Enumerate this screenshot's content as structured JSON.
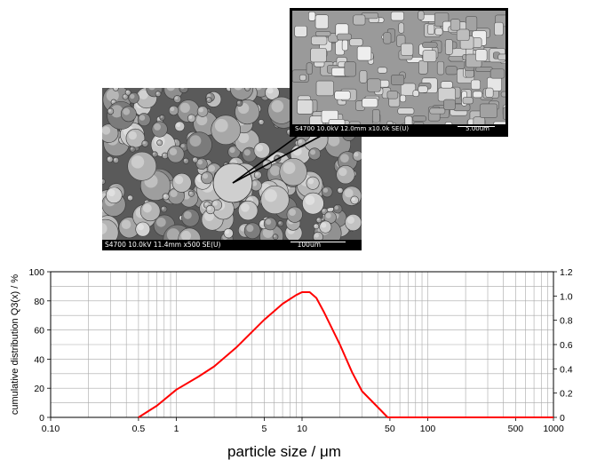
{
  "images": {
    "main": {
      "caption_left": "S4700 10.0kV 11.4mm x500 SE(U)",
      "caption_right": "100um"
    },
    "inset": {
      "caption_left": "S4700 10.0kV 12.0mm x10.0k SE(U)",
      "caption_right": "5.00um"
    }
  },
  "chart_data": {
    "type": "line",
    "xlabel": "particle size / μm",
    "ylabel": "cumulative distribution Q3(x) / %",
    "x_scale": "log",
    "xlim": [
      0.1,
      1000
    ],
    "ylim": [
      0,
      100
    ],
    "y2lim": [
      0,
      1.2
    ],
    "grid": true,
    "x_tick_labels": [
      "0.10",
      "0.5",
      "1",
      "5",
      "10",
      "50",
      "100",
      "500",
      "1000"
    ],
    "x_tick_values": [
      0.1,
      0.5,
      1,
      5,
      10,
      50,
      100,
      500,
      1000
    ],
    "y_tick_labels": [
      "0",
      "20",
      "40",
      "60",
      "80",
      "100"
    ],
    "y_tick_values": [
      0,
      20,
      40,
      60,
      80,
      100
    ],
    "y2_tick_labels": [
      "0",
      "0.2",
      "0.4",
      "0.6",
      "0.8",
      "1.0",
      "1.2"
    ],
    "y2_tick_values": [
      0,
      0.2,
      0.4,
      0.6,
      0.8,
      1.0,
      1.2
    ],
    "series": [
      {
        "color": "#ff0000",
        "x": [
          0.5,
          0.7,
          1.0,
          1.5,
          2.0,
          3.0,
          5.0,
          7.0,
          9.0,
          10.0,
          11.5,
          13.0,
          15.0,
          20.0,
          25.0,
          30.0,
          40.0,
          48.0,
          60.0,
          100.0,
          300.0,
          1000.0
        ],
        "y": [
          0,
          8,
          19,
          28,
          35,
          48,
          67,
          78,
          84,
          86,
          86,
          82,
          72,
          50,
          31,
          18,
          7,
          0,
          0,
          0,
          0,
          0
        ]
      }
    ]
  }
}
